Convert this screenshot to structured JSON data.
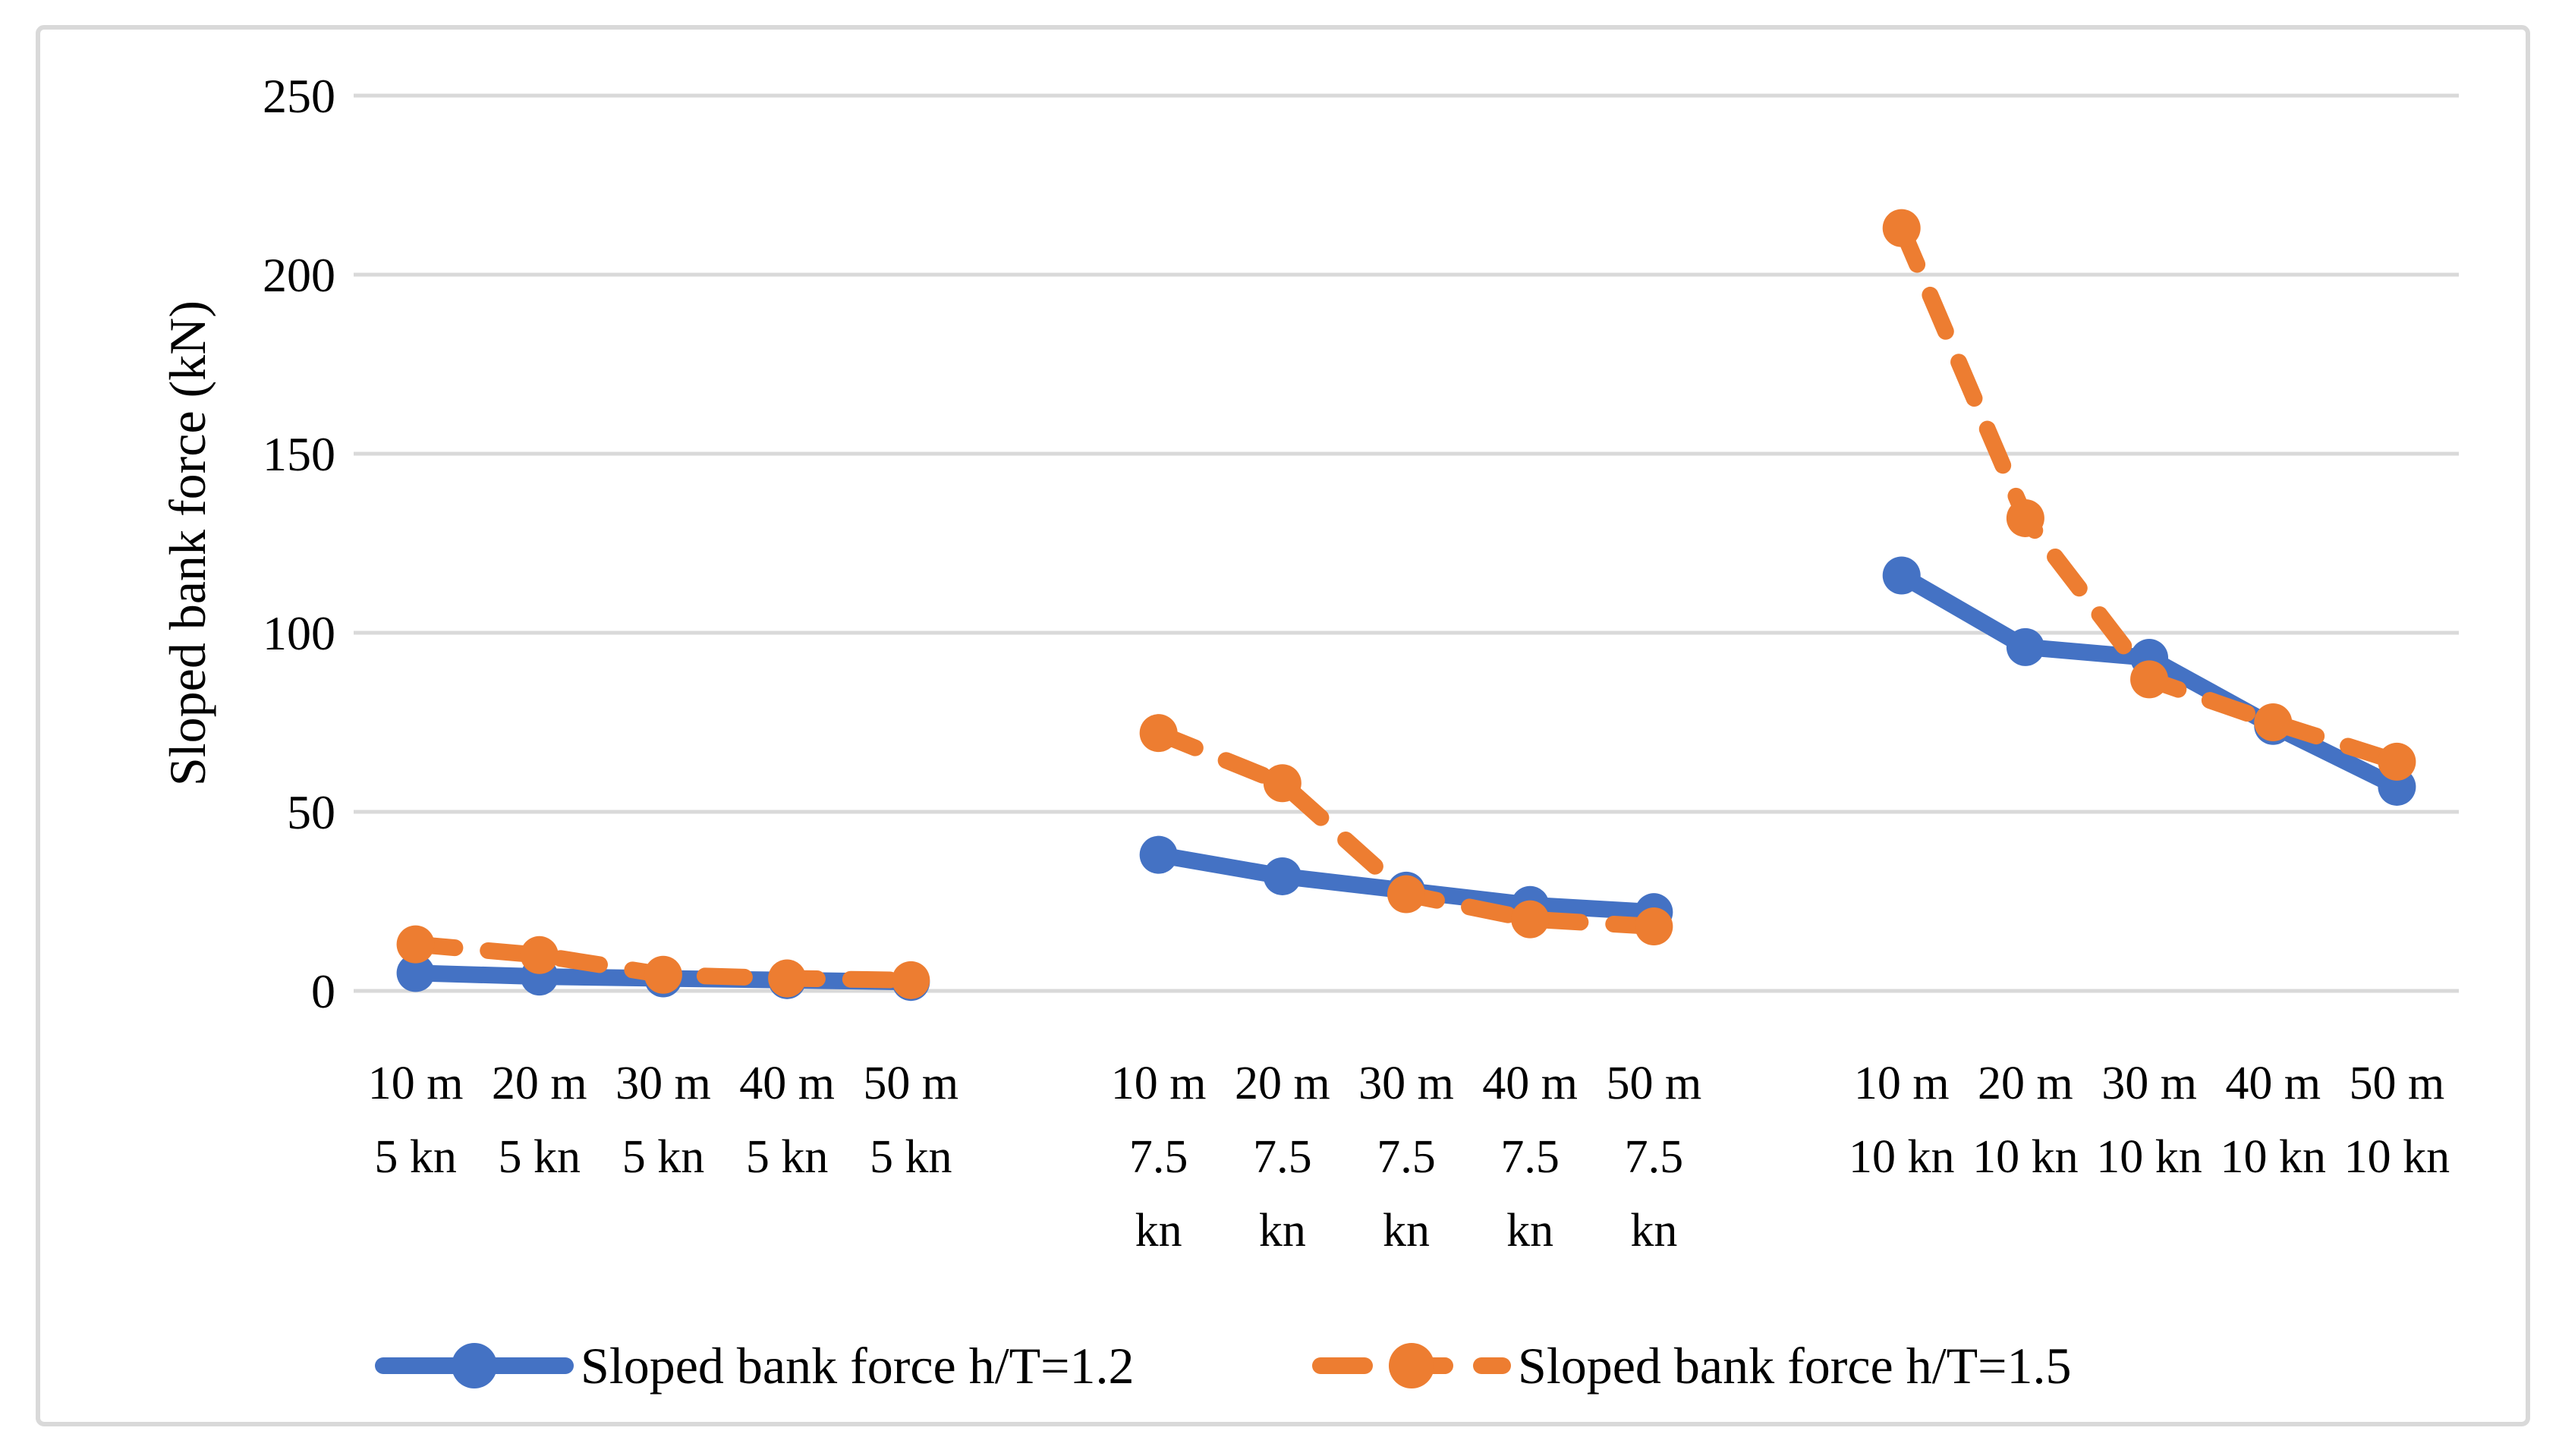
{
  "figure": {
    "background": "#FFFFFF",
    "frame_color": "#D9D9D9",
    "gridline_color": "#D9D9D9",
    "text_color": "#000000"
  },
  "chart_data": {
    "type": "line",
    "title": "",
    "xlabel": "",
    "ylabel": "Sloped bank force (kN)",
    "ylim": [
      0,
      250
    ],
    "yticks": [
      0,
      50,
      100,
      150,
      200,
      250
    ],
    "grid": "horizontal-only",
    "legend_position": "bottom",
    "group_size": 5,
    "categories": [
      {
        "lines": [
          "10 m",
          "5 kn"
        ]
      },
      {
        "lines": [
          "20 m",
          "5 kn"
        ]
      },
      {
        "lines": [
          "30 m",
          "5 kn"
        ]
      },
      {
        "lines": [
          "40 m",
          "5 kn"
        ]
      },
      {
        "lines": [
          "50 m",
          "5 kn"
        ]
      },
      {
        "lines": [
          "10 m",
          "7.5",
          "kn"
        ]
      },
      {
        "lines": [
          "20 m",
          "7.5",
          "kn"
        ]
      },
      {
        "lines": [
          "30 m",
          "7.5",
          "kn"
        ]
      },
      {
        "lines": [
          "40 m",
          "7.5",
          "kn"
        ]
      },
      {
        "lines": [
          "50 m",
          "7.5",
          "kn"
        ]
      },
      {
        "lines": [
          "10 m",
          "10 kn"
        ]
      },
      {
        "lines": [
          "20 m",
          "10 kn"
        ]
      },
      {
        "lines": [
          "30 m",
          "10 kn"
        ]
      },
      {
        "lines": [
          "40 m",
          "10 kn"
        ]
      },
      {
        "lines": [
          "50 m",
          "10 kn"
        ]
      }
    ],
    "series": [
      {
        "name": "Sloped bank force h/T=1.2",
        "color": "#4472C4",
        "line_style": "solid",
        "marker": "circle",
        "values": [
          5,
          4,
          3.5,
          3,
          2.5,
          38,
          32,
          28,
          24,
          22,
          116,
          96,
          93,
          74,
          57
        ]
      },
      {
        "name": "Sloped bank force h/T=1.5",
        "color": "#ED7D31",
        "line_style": "dashed",
        "marker": "circle",
        "values": [
          13,
          10,
          4.5,
          3.5,
          3,
          72,
          58,
          27,
          20,
          18,
          213,
          132,
          87,
          75,
          64
        ]
      }
    ]
  }
}
